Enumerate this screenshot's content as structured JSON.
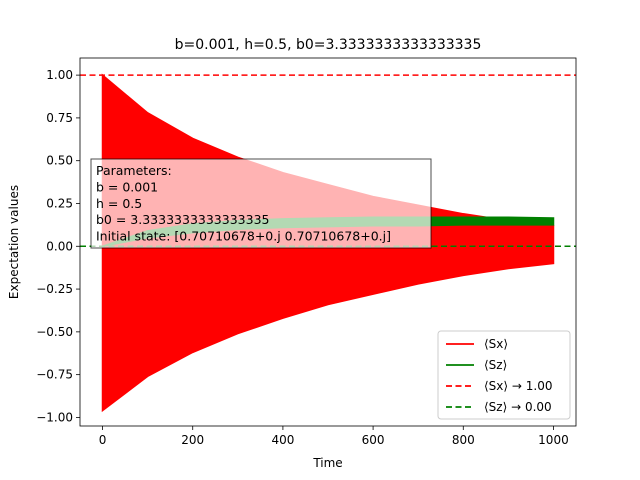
{
  "chart_data": {
    "type": "line",
    "title": "b=0.001, h=0.5, b0=3.3333333333333335",
    "xlabel": "Time",
    "ylabel": "Expectation values",
    "xlim": [
      -50,
      1050
    ],
    "ylim": [
      -1.05,
      1.1
    ],
    "x_ticks": [
      0,
      200,
      400,
      600,
      800,
      1000
    ],
    "y_ticks": [
      -1.0,
      -0.75,
      -0.5,
      -0.25,
      0.0,
      0.25,
      0.5,
      0.75,
      1.0
    ],
    "grid": false,
    "legend_position": "lower-right",
    "series": [
      {
        "name": "⟨Sx⟩",
        "color": "#ff0000",
        "style": "solid",
        "envelope_x": [
          0,
          100,
          200,
          300,
          400,
          500,
          600,
          700,
          800,
          900,
          1000
        ],
        "upper": [
          1.0,
          0.78,
          0.63,
          0.52,
          0.43,
          0.36,
          0.29,
          0.24,
          0.19,
          0.15,
          0.12
        ],
        "lower": [
          -0.96,
          -0.76,
          -0.62,
          -0.51,
          -0.42,
          -0.34,
          -0.28,
          -0.22,
          -0.17,
          -0.13,
          -0.1
        ]
      },
      {
        "name": "⟨Sz⟩",
        "color": "#008000",
        "style": "solid",
        "envelope_x": [
          0,
          100,
          200,
          300,
          400,
          500,
          600,
          700,
          800,
          900,
          1000
        ],
        "upper": [
          0.0,
          0.09,
          0.13,
          0.15,
          0.16,
          0.165,
          0.17,
          0.17,
          0.17,
          0.17,
          0.165
        ],
        "lower": [
          0.0,
          0.05,
          0.08,
          0.1,
          0.11,
          0.115,
          0.12,
          0.12,
          0.125,
          0.125,
          0.125
        ]
      },
      {
        "name": "⟨Sx⟩ → 1.00",
        "color": "#ff0000",
        "style": "dashed",
        "hline": 1.0
      },
      {
        "name": "⟨Sz⟩ → 0.00",
        "color": "#008000",
        "style": "dashed",
        "hline": 0.0
      }
    ],
    "annotation_lines": [
      "Parameters:",
      "b = 0.001",
      "h = 0.5",
      "b0 = 3.3333333333333335",
      "Initial state: [0.70710678+0.j 0.70710678+0.j]"
    ]
  }
}
